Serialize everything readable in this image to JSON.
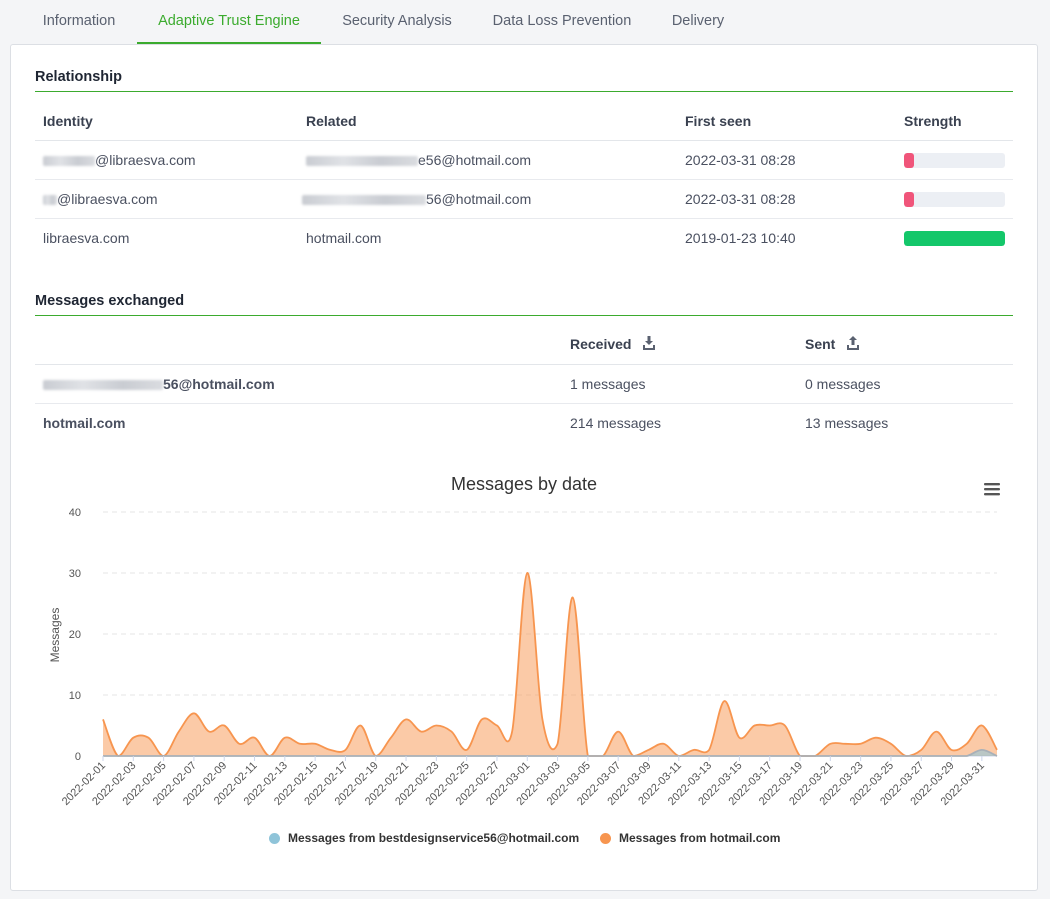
{
  "tabs": [
    {
      "label": "Information",
      "active": false
    },
    {
      "label": "Adaptive Trust Engine",
      "active": true
    },
    {
      "label": "Security Analysis",
      "active": false
    },
    {
      "label": "Data Loss Prevention",
      "active": false
    },
    {
      "label": "Delivery",
      "active": false
    }
  ],
  "relationship": {
    "title": "Relationship",
    "columns": {
      "identity": "Identity",
      "related": "Related",
      "first_seen": "First seen",
      "strength": "Strength"
    },
    "rows": [
      {
        "identity": "@libraesva.com",
        "related": "e56@hotmail.com",
        "first_seen": "2022-03-31 08:28",
        "strength": 0.1,
        "strength_color": "#f0557a"
      },
      {
        "identity": "@libraesva.com",
        "related": "56@hotmail.com",
        "first_seen": "2022-03-31 08:28",
        "strength": 0.1,
        "strength_color": "#f0557a"
      },
      {
        "identity": "libraesva.com",
        "related": "hotmail.com",
        "first_seen": "2019-01-23 10:40",
        "strength": 1.0,
        "strength_color": "#14c76a"
      }
    ]
  },
  "messages": {
    "title": "Messages exchanged",
    "columns": {
      "received": "Received",
      "sent": "Sent"
    },
    "rows": [
      {
        "name": "56@hotmail.com",
        "received": "1 messages",
        "sent": "0 messages"
      },
      {
        "name": "hotmail.com",
        "received": "214 messages",
        "sent": "13 messages"
      }
    ]
  },
  "chart_data": {
    "type": "area",
    "title": "Messages by date",
    "ylabel": "Messages",
    "ylim": [
      0,
      40
    ],
    "yticks": [
      0,
      10,
      20,
      30,
      40
    ],
    "x": [
      "2022-02-01",
      "2022-02-02",
      "2022-02-03",
      "2022-02-04",
      "2022-02-05",
      "2022-02-06",
      "2022-02-07",
      "2022-02-08",
      "2022-02-09",
      "2022-02-10",
      "2022-02-11",
      "2022-02-12",
      "2022-02-13",
      "2022-02-14",
      "2022-02-15",
      "2022-02-16",
      "2022-02-17",
      "2022-02-18",
      "2022-02-19",
      "2022-02-20",
      "2022-02-21",
      "2022-02-22",
      "2022-02-23",
      "2022-02-24",
      "2022-02-25",
      "2022-02-26",
      "2022-02-27",
      "2022-02-28",
      "2022-03-01",
      "2022-03-02",
      "2022-03-03",
      "2022-03-04",
      "2022-03-05",
      "2022-03-06",
      "2022-03-07",
      "2022-03-08",
      "2022-03-09",
      "2022-03-10",
      "2022-03-11",
      "2022-03-12",
      "2022-03-13",
      "2022-03-14",
      "2022-03-15",
      "2022-03-16",
      "2022-03-17",
      "2022-03-18",
      "2022-03-19",
      "2022-03-20",
      "2022-03-21",
      "2022-03-22",
      "2022-03-23",
      "2022-03-24",
      "2022-03-25",
      "2022-03-26",
      "2022-03-27",
      "2022-03-28",
      "2022-03-29",
      "2022-03-30",
      "2022-03-31",
      "2022-04-01"
    ],
    "xtick_labels": [
      "2022-02-01",
      "2022-02-03",
      "2022-02-05",
      "2022-02-07",
      "2022-02-09",
      "2022-02-11",
      "2022-02-13",
      "2022-02-15",
      "2022-02-17",
      "2022-02-19",
      "2022-02-21",
      "2022-02-23",
      "2022-02-25",
      "2022-02-27",
      "2022-03-01",
      "2022-03-03",
      "2022-03-05",
      "2022-03-07",
      "2022-03-09",
      "2022-03-11",
      "2022-03-13",
      "2022-03-15",
      "2022-03-17",
      "2022-03-19",
      "2022-03-21",
      "2022-03-23",
      "2022-03-25",
      "2022-03-27",
      "2022-03-29",
      "2022-03-31"
    ],
    "series": [
      {
        "name": "Messages from bestdesignservice56@hotmail.com",
        "color": "#8fc4d9",
        "values": [
          0,
          0,
          0,
          0,
          0,
          0,
          0,
          0,
          0,
          0,
          0,
          0,
          0,
          0,
          0,
          0,
          0,
          0,
          0,
          0,
          0,
          0,
          0,
          0,
          0,
          0,
          0,
          0,
          0,
          0,
          0,
          0,
          0,
          0,
          0,
          0,
          0,
          0,
          0,
          0,
          0,
          0,
          0,
          0,
          0,
          0,
          0,
          0,
          0,
          0,
          0,
          0,
          0,
          0,
          0,
          0,
          0,
          0,
          1,
          0
        ]
      },
      {
        "name": "Messages from hotmail.com",
        "color": "#f7954f",
        "values": [
          6,
          0,
          3,
          3,
          0,
          4,
          7,
          4,
          5,
          2,
          3,
          0,
          3,
          2,
          2,
          1,
          1,
          5,
          0,
          3,
          6,
          4,
          5,
          4,
          1,
          6,
          5,
          4,
          30,
          6,
          2,
          26,
          0,
          0,
          4,
          0,
          1,
          2,
          0,
          1,
          1,
          9,
          3,
          5,
          5,
          5,
          0,
          0,
          2,
          2,
          2,
          3,
          2,
          0,
          1,
          4,
          1,
          2,
          5,
          1
        ]
      }
    ]
  }
}
